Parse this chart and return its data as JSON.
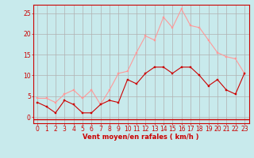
{
  "x": [
    0,
    1,
    2,
    3,
    4,
    5,
    6,
    7,
    8,
    9,
    10,
    11,
    12,
    13,
    14,
    15,
    16,
    17,
    18,
    19,
    20,
    21,
    22,
    23
  ],
  "wind_avg": [
    3.5,
    2.5,
    1.0,
    4.0,
    3.0,
    1.0,
    1.0,
    3.0,
    4.0,
    3.5,
    9.0,
    8.0,
    10.5,
    12.0,
    12.0,
    10.5,
    12.0,
    12.0,
    10.0,
    7.5,
    9.0,
    6.5,
    5.5,
    10.5
  ],
  "wind_gust": [
    4.5,
    4.5,
    3.5,
    5.5,
    6.5,
    4.5,
    6.5,
    3.0,
    6.5,
    10.5,
    11.0,
    15.5,
    19.5,
    18.5,
    24.0,
    21.5,
    26.0,
    22.0,
    21.5,
    18.5,
    15.5,
    14.5,
    14.0,
    10.5
  ],
  "color_avg": "#cc0000",
  "color_gust": "#ff9999",
  "bg_color": "#c8eaec",
  "grid_color": "#b0b0b0",
  "xlabel": "Vent moyen/en rafales ( km/h )",
  "xlabel_color": "#cc0000",
  "tick_color": "#cc0000",
  "ylim": [
    -1.5,
    27
  ],
  "xlim": [
    -0.5,
    23.5
  ],
  "yticks": [
    0,
    5,
    10,
    15,
    20,
    25
  ],
  "xticks": [
    0,
    1,
    2,
    3,
    4,
    5,
    6,
    7,
    8,
    9,
    10,
    11,
    12,
    13,
    14,
    15,
    16,
    17,
    18,
    19,
    20,
    21,
    22,
    23
  ],
  "tick_fontsize": 5.5,
  "xlabel_fontsize": 6.0
}
